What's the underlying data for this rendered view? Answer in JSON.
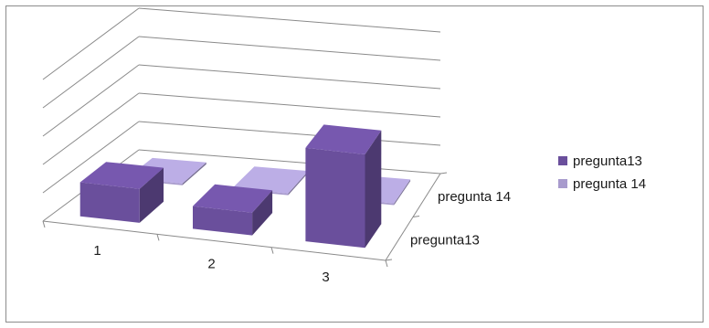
{
  "chart_data": {
    "type": "bar",
    "subtype": "3d-clustered-depth",
    "categories": [
      "1",
      "2",
      "3"
    ],
    "series": [
      {
        "name": "pregunta13",
        "values": [
          1.2,
          0.8,
          3.3
        ],
        "color": "#6a4f9c"
      },
      {
        "name": "pregunta 14",
        "values": [
          0.05,
          0,
          0.05
        ],
        "color": "#a89bcd"
      }
    ],
    "series_order_back_to_front": [
      1,
      0
    ],
    "ylim": [
      0,
      5
    ],
    "grid": true,
    "legend_position": "right"
  }
}
